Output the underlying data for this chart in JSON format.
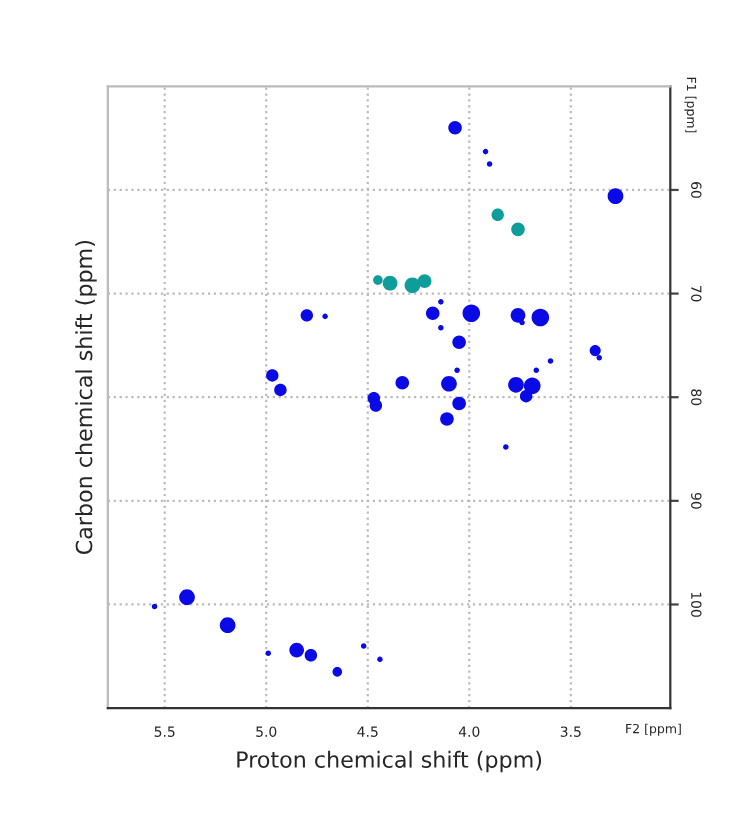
{
  "chart_data": {
    "type": "bubble",
    "xlabel": "Proton chemical shift (ppm)",
    "ylabel": "Carbon chemical shift (ppm)",
    "xlim": [
      5.78,
      3.01
    ],
    "ylim": [
      110,
      50
    ],
    "xticks": [
      {
        "value": 5.5,
        "label": "5.5"
      },
      {
        "value": 5,
        "label": "5.0"
      },
      {
        "value": 4.5,
        "label": "4.5"
      },
      {
        "value": 4,
        "label": "4.0"
      },
      {
        "value": 3.5,
        "label": "3.5"
      }
    ],
    "yticks": [
      60,
      70,
      80,
      90,
      100
    ],
    "annotations": [
      "F2 [ppm]",
      "F1 [ppm]"
    ],
    "grid": true,
    "marker": "circle",
    "legend": false,
    "series": [
      {
        "color": "#0a0ae6",
        "x": [
          4.07,
          3.92,
          3.9,
          3.28,
          4.18,
          4.14,
          3.99,
          3.65,
          3.76,
          4.8,
          4.71,
          4.05,
          4.14,
          3.74,
          3.38,
          3.36,
          3.6,
          4.97,
          4.93,
          4.33,
          4.1,
          3.77,
          3.69,
          3.72,
          4.06,
          3.67,
          4.47,
          4.46,
          4.05,
          4.11,
          3.82,
          5.39,
          5.55,
          5.19,
          4.85,
          4.78,
          4.99,
          4.52,
          4.44,
          4.65
        ],
        "values": [
          54.0,
          56.3,
          57.5,
          60.6,
          71.9,
          70.8,
          71.9,
          72.3,
          72.1,
          72.1,
          72.2,
          74.7,
          73.3,
          72.8,
          75.5,
          76.2,
          76.5,
          77.9,
          79.3,
          78.6,
          78.7,
          78.8,
          78.9,
          79.9,
          77.4,
          77.4,
          80.1,
          80.8,
          80.6,
          82.1,
          84.8,
          99.3,
          100.2,
          102.0,
          104.4,
          104.9,
          104.7,
          104.0,
          105.3,
          106.5
        ],
        "sizes": [
          0.6,
          0.1,
          0.1,
          0.8,
          0.6,
          0.1,
          1,
          1,
          0.7,
          0.5,
          0.1,
          0.6,
          0.1,
          0.1,
          0.4,
          0.1,
          0.1,
          0.5,
          0.5,
          0.6,
          0.8,
          0.8,
          0.9,
          0.5,
          0.1,
          0.1,
          0.5,
          0.5,
          0.6,
          0.6,
          0.1,
          0.8,
          0.1,
          0.8,
          0.7,
          0.5,
          0.1,
          0.1,
          0.1,
          0.3
        ]
      },
      {
        "color": "#0f9d9a",
        "x": [
          3.86,
          3.76,
          4.39,
          4.28,
          4.22,
          4.45
        ],
        "values": [
          62.4,
          63.8,
          69.0,
          69.2,
          68.8,
          68.7
        ],
        "sizes": [
          0.5,
          0.6,
          0.7,
          0.8,
          0.6,
          0.3
        ]
      }
    ]
  }
}
